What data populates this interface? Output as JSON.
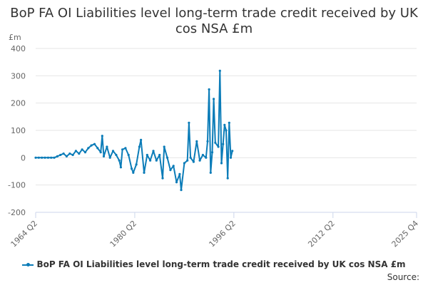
{
  "chart_data": {
    "type": "line",
    "title": "BoP FA OI Liabilities level long-term trade credit received by UK cos NSA £m",
    "ylabel": "£m",
    "xlabel": "",
    "ylim": [
      -200,
      400
    ],
    "yticks": [
      400,
      300,
      200,
      100,
      0,
      -100,
      -200
    ],
    "xlim": [
      "1964 Q2",
      "2025 Q4"
    ],
    "xticks": [
      "1964 Q2",
      "1980 Q2",
      "1996 Q2",
      "2012 Q2",
      "2025 Q4"
    ],
    "grid": "horizontal",
    "legend_position": "bottom",
    "series": [
      {
        "name": "BoP FA OI Liabilities level long-term trade credit received by UK cos NSA £m",
        "color": "#0b7cb8",
        "points": [
          [
            "1964 Q2",
            0
          ],
          [
            "1964 Q4",
            0
          ],
          [
            "1965 Q2",
            0
          ],
          [
            "1965 Q4",
            0
          ],
          [
            "1966 Q2",
            0
          ],
          [
            "1966 Q4",
            0
          ],
          [
            "1967 Q2",
            0
          ],
          [
            "1967 Q4",
            5
          ],
          [
            "1968 Q2",
            10
          ],
          [
            "1968 Q4",
            15
          ],
          [
            "1969 Q2",
            5
          ],
          [
            "1969 Q4",
            15
          ],
          [
            "1970 Q2",
            10
          ],
          [
            "1970 Q4",
            25
          ],
          [
            "1971 Q2",
            15
          ],
          [
            "1971 Q4",
            30
          ],
          [
            "1972 Q2",
            20
          ],
          [
            "1972 Q4",
            35
          ],
          [
            "1973 Q2",
            45
          ],
          [
            "1973 Q4",
            50
          ],
          [
            "1974 Q2",
            35
          ],
          [
            "1974 Q4",
            20
          ],
          [
            "1975 Q1",
            80
          ],
          [
            "1975 Q2",
            5
          ],
          [
            "1975 Q4",
            40
          ],
          [
            "1976 Q2",
            0
          ],
          [
            "1976 Q4",
            25
          ],
          [
            "1977 Q2",
            10
          ],
          [
            "1977 Q4",
            -10
          ],
          [
            "1978 Q1",
            -35
          ],
          [
            "1978 Q2",
            30
          ],
          [
            "1978 Q4",
            35
          ],
          [
            "1979 Q2",
            10
          ],
          [
            "1979 Q4",
            -40
          ],
          [
            "1980 Q1",
            -55
          ],
          [
            "1980 Q3",
            -25
          ],
          [
            "1981 Q1",
            40
          ],
          [
            "1981 Q2",
            65
          ],
          [
            "1981 Q4",
            -55
          ],
          [
            "1982 Q2",
            10
          ],
          [
            "1982 Q4",
            -10
          ],
          [
            "1983 Q2",
            25
          ],
          [
            "1983 Q4",
            -10
          ],
          [
            "1984 Q2",
            10
          ],
          [
            "1984 Q4",
            -75
          ],
          [
            "1985 Q1",
            40
          ],
          [
            "1985 Q3",
            0
          ],
          [
            "1986 Q1",
            -45
          ],
          [
            "1986 Q3",
            -30
          ],
          [
            "1987 Q1",
            -90
          ],
          [
            "1987 Q3",
            -60
          ],
          [
            "1987 Q4",
            -118
          ],
          [
            "1988 Q2",
            -20
          ],
          [
            "1988 Q4",
            -10
          ],
          [
            "1989 Q1",
            128
          ],
          [
            "1989 Q2",
            0
          ],
          [
            "1989 Q4",
            -15
          ],
          [
            "1990 Q2",
            60
          ],
          [
            "1990 Q4",
            -10
          ],
          [
            "1991 Q2",
            10
          ],
          [
            "1991 Q4",
            0
          ],
          [
            "1992 Q1",
            60
          ],
          [
            "1992 Q2",
            250
          ],
          [
            "1992 Q3",
            -55
          ],
          [
            "1992 Q4",
            20
          ],
          [
            "1993 Q1",
            215
          ],
          [
            "1993 Q2",
            55
          ],
          [
            "1993 Q4",
            40
          ],
          [
            "1994 Q1",
            318
          ],
          [
            "1994 Q2",
            -20
          ],
          [
            "1994 Q3",
            50
          ],
          [
            "1994 Q4",
            120
          ],
          [
            "1995 Q1",
            100
          ],
          [
            "1995 Q2",
            -75
          ],
          [
            "1995 Q3",
            128
          ],
          [
            "1995 Q4",
            0
          ],
          [
            "1996 Q1",
            25
          ]
        ]
      }
    ],
    "source_label": "Source:"
  }
}
